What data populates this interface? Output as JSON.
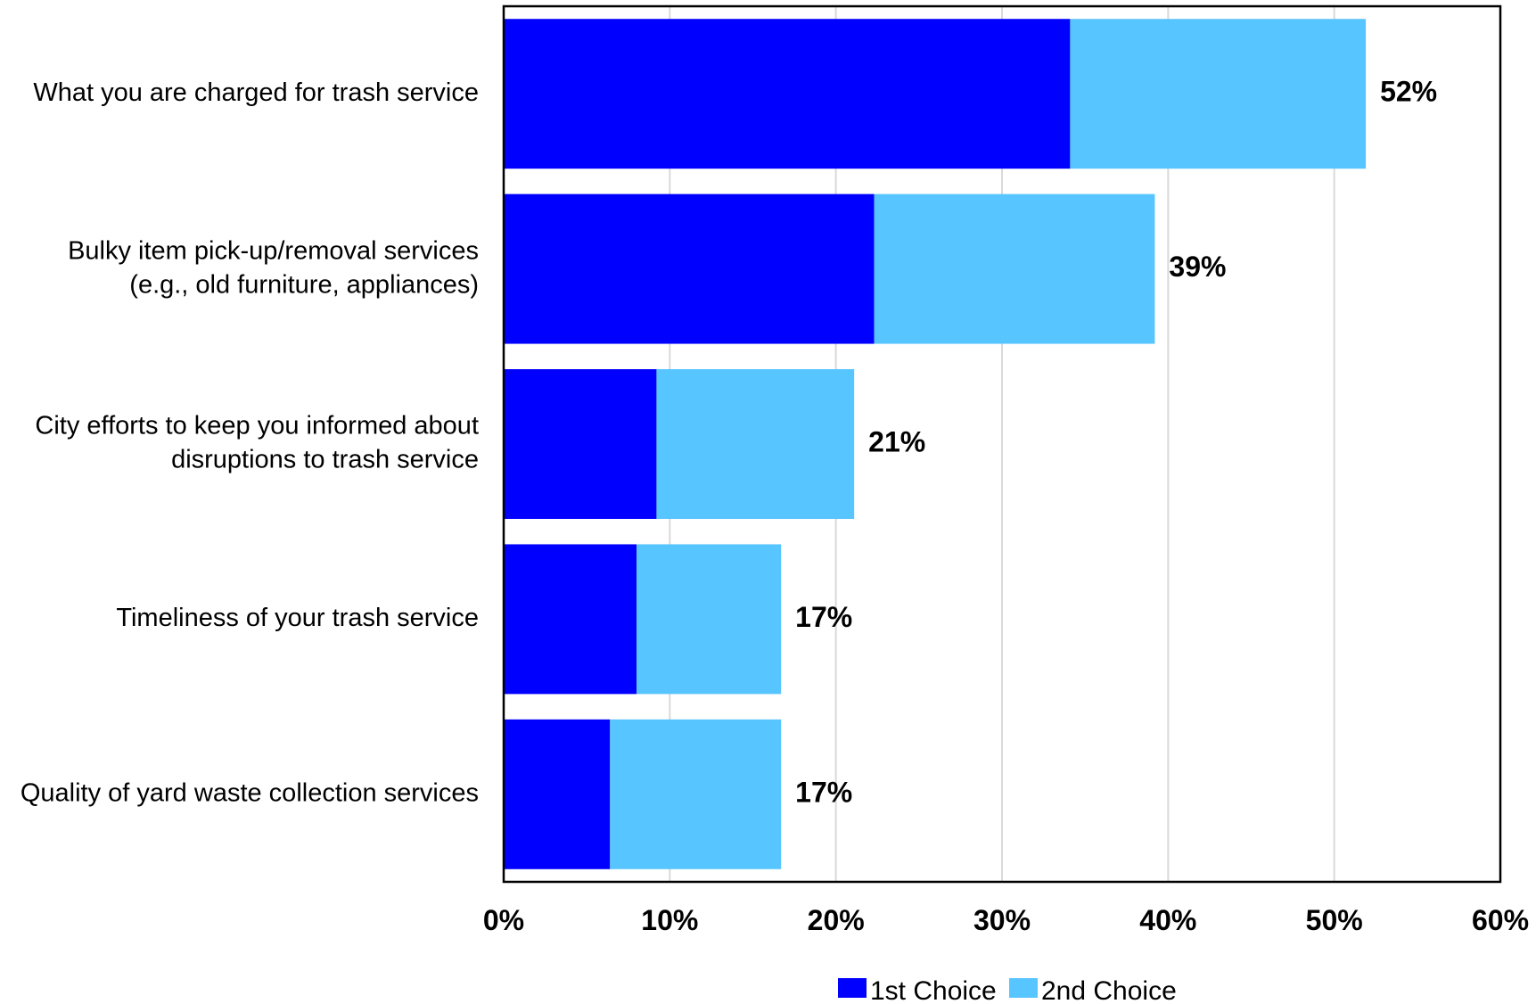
{
  "chart_data": {
    "type": "bar",
    "orientation": "horizontal",
    "stacked": true,
    "categories": [
      "What you are charged for trash service",
      "Bulky item pick-up/removal services (e.g., old furniture, appliances)",
      "City efforts to keep you informed about disruptions to trash service",
      "Timeliness of your trash service",
      "Quality of yard waste collection services"
    ],
    "category_lines": [
      [
        "What you are charged for trash service"
      ],
      [
        "Bulky item pick-up/removal services",
        "(e.g., old furniture, appliances)"
      ],
      [
        "City efforts to keep you informed about",
        "disruptions to trash service"
      ],
      [
        "Timeliness of your trash service"
      ],
      [
        "Quality of yard waste collection services"
      ]
    ],
    "series": [
      {
        "name": "1st Choice",
        "color": "#0000FF",
        "values": [
          34.1,
          22.3,
          9.2,
          8.0,
          6.4
        ]
      },
      {
        "name": "2nd Choice",
        "color": "#57C5FF",
        "values": [
          17.8,
          16.9,
          11.9,
          8.7,
          10.3
        ]
      }
    ],
    "totals_labels": [
      "52%",
      "39%",
      "21%",
      "17%",
      "17%"
    ],
    "xlim": [
      0,
      60
    ],
    "xticks": [
      0,
      10,
      20,
      30,
      40,
      50,
      60
    ],
    "xtick_labels": [
      "0%",
      "10%",
      "20%",
      "30%",
      "40%",
      "50%",
      "60%"
    ],
    "grid": "vertical",
    "legend": "bottom",
    "title": "",
    "xlabel": "",
    "ylabel": ""
  }
}
